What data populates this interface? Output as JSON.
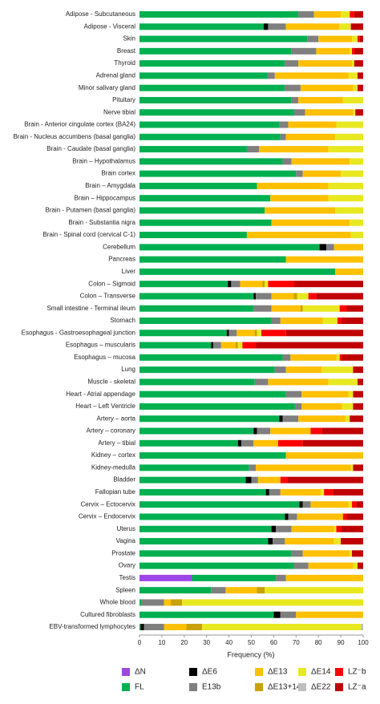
{
  "chart_data": {
    "type": "stacked-bar-horizontal",
    "xlabel": "Frequency (%)",
    "xlim": [
      0,
      100
    ],
    "xticks": [
      0,
      10,
      20,
      30,
      40,
      50,
      60,
      70,
      80,
      90,
      100
    ],
    "categories": [
      "Adipose - Subcutaneous",
      "Adipose - Visceral",
      "Skin",
      "Breast",
      "Thyroid",
      "Adrenal gland",
      "Minor salivary gland",
      "Pituitary",
      "Nerve tibial",
      "Brain - Anterior cingulate cortex (BA24)",
      "Brain - Nucleus accumbens (basal ganglia)",
      "Brain - Caudate (basal ganglia)",
      "Brain – Hypothalamus",
      "Brain cortex",
      "Brain – Amygdala",
      "Brain – Hippocampus",
      "Brain - Putamen (basal ganglia)",
      "Brain - Substantia nigra",
      "Brain - Spinal cord (cervical C-1)",
      "Cerebellum",
      "Pancreas",
      "Liver",
      "Colon – Sigmoid",
      "Colon – Transverse",
      "Small intestine - Terminal ileum",
      "Stomach",
      "Esophagus - Gastroesophageal junction",
      "Esophagus – muscularis",
      "Esophagus – mucosa",
      "Lung",
      "Muscle - skeletal",
      "Heart - Atrial appendage",
      "Heart – Left Ventricle",
      "Artery – aorta",
      "Artery – coronary",
      "Artery – tibial",
      "Kidney – cortex",
      "Kidney-medulla",
      "Bladder",
      "Fallopian tube",
      "Cervix – Ectocervix",
      "Cervix – Endocervix",
      "Uterus",
      "Vagina",
      "Prostate",
      "Ovary",
      "Testis",
      "Spleen",
      "Whole blood",
      "Cultured fibroblasts",
      "EBV-transformed lymphocytes"
    ],
    "series": [
      {
        "name": "ΔN",
        "color": "#9e47e8",
        "values": [
          0,
          0,
          0,
          0,
          0,
          0,
          0,
          0,
          0,
          0,
          0,
          0,
          0,
          0,
          0,
          0,
          0,
          0,
          0,
          0,
          0,
          0,
          0,
          0,
          0,
          0,
          0,
          0,
          0,
          0,
          0,
          0,
          0,
          0,
          0,
          0,
          0,
          0,
          0,
          0,
          0,
          0,
          0,
          0,
          0,
          0,
          23.5,
          0,
          0,
          0,
          0
        ]
      },
      {
        "name": "FL",
        "color": "#00b050",
        "values": [
          71,
          55.5,
          75,
          68,
          65,
          57,
          65,
          68,
          69,
          62.5,
          63,
          48,
          64,
          70,
          52.5,
          58.5,
          56,
          59,
          48,
          80.5,
          65.5,
          87.5,
          39.5,
          51,
          51,
          59,
          39,
          32,
          64,
          60.5,
          51.5,
          65.5,
          69.5,
          62.5,
          51,
          44,
          65.5,
          49,
          47.5,
          56.5,
          71.5,
          65,
          59,
          57.5,
          68,
          69,
          37.5,
          32,
          1,
          60,
          0.5
        ]
      },
      {
        "name": "ΔE6",
        "color": "#000000",
        "values": [
          0,
          2,
          0,
          0,
          0,
          0,
          0,
          0,
          0,
          0,
          0,
          0,
          0,
          0,
          0,
          0,
          0,
          0,
          0,
          3,
          0,
          0,
          1.5,
          1,
          0,
          0,
          1,
          1,
          0,
          0,
          0,
          0,
          0,
          1.5,
          1.5,
          1.5,
          0,
          0,
          2.5,
          1.5,
          1.5,
          1.5,
          2,
          2,
          0,
          0,
          0,
          0,
          0,
          3,
          1.5
        ]
      },
      {
        "name": "E13b",
        "color": "#7f7f7f",
        "values": [
          7,
          8,
          5,
          11,
          6,
          3.5,
          7,
          3,
          5,
          4,
          2.5,
          5.5,
          4,
          3,
          0,
          0,
          0,
          0,
          0,
          3.5,
          0,
          0,
          4,
          7,
          8,
          4,
          3.5,
          3.5,
          3.5,
          5,
          6,
          7,
          3,
          7,
          6,
          5.5,
          0,
          3,
          3,
          5,
          3.5,
          4,
          7,
          5.5,
          5,
          6.5,
          4.5,
          6.5,
          10,
          7,
          9
        ]
      },
      {
        "name": "ΔE13",
        "color": "#ffc000",
        "values": [
          12,
          24,
          15,
          15,
          24,
          33,
          23.5,
          20,
          21.5,
          21.5,
          22,
          31,
          26,
          17,
          32,
          26,
          31.5,
          35,
          46.5,
          13,
          34.5,
          12.5,
          10,
          10,
          13,
          19,
          8,
          6.5,
          20.5,
          16,
          27,
          21,
          18,
          21,
          18,
          11,
          34.5,
          42.5,
          10,
          18,
          17,
          20.5,
          19,
          22,
          21,
          20,
          34.5,
          14,
          3,
          30,
          10
        ]
      },
      {
        "name": "ΔE13+14",
        "color": "#c9a100",
        "values": [
          0,
          0,
          0,
          0,
          0,
          0,
          0,
          0,
          0,
          0,
          0,
          0,
          0,
          0,
          0,
          0,
          0,
          0,
          0,
          0,
          0,
          0,
          1,
          1.5,
          1,
          0,
          1,
          1,
          0,
          0,
          0,
          0,
          0,
          0,
          0,
          0,
          0,
          0,
          0,
          0,
          0,
          0,
          0,
          0,
          0,
          0,
          0,
          3.5,
          5,
          0,
          7
        ]
      },
      {
        "name": "ΔE14",
        "color": "#e8e820",
        "values": [
          4,
          5,
          2.5,
          1,
          1,
          4,
          2,
          9,
          1,
          12,
          12.5,
          15.5,
          6,
          10,
          15.5,
          15.5,
          12.5,
          6,
          5.5,
          0,
          0,
          0,
          1.5,
          5,
          16.5,
          6.5,
          2,
          2,
          1.5,
          14,
          13,
          2,
          5,
          2,
          0,
          0,
          0,
          1,
          0,
          1.5,
          1.5,
          0,
          1,
          3,
          1,
          2,
          0,
          44,
          81,
          0,
          71
        ]
      },
      {
        "name": "ΔE22",
        "color": "#bfbfbf",
        "values": [
          0,
          0,
          0,
          0,
          0,
          0,
          0,
          0,
          0,
          0,
          0,
          0,
          0,
          0,
          0,
          0,
          0,
          0,
          0,
          0,
          0,
          0,
          0,
          0,
          0,
          0,
          0,
          0,
          0,
          0,
          0,
          0,
          0,
          0,
          0,
          0,
          0,
          0,
          0,
          0,
          0,
          0,
          0,
          0,
          0,
          0,
          0,
          0,
          0,
          0,
          1
        ]
      },
      {
        "name": "LZ⁻b",
        "color": "#ff0000",
        "values": [
          2,
          0,
          1,
          1,
          0,
          0,
          0,
          0,
          0,
          0,
          0,
          0,
          0,
          0,
          0,
          0,
          0,
          0,
          0,
          0,
          0,
          0,
          11.5,
          3.5,
          3,
          2,
          11,
          6,
          1,
          0,
          0,
          0,
          0,
          0,
          5,
          11,
          0,
          0,
          3,
          4,
          2,
          1.5,
          2,
          0,
          0,
          0,
          0,
          0,
          0,
          0,
          0
        ]
      },
      {
        "name": "LZ⁻a",
        "color": "#c00000",
        "values": [
          4,
          5.5,
          1.5,
          4,
          4,
          2.5,
          2.5,
          0,
          3.5,
          0,
          0,
          0,
          0,
          0,
          0,
          0,
          0,
          0,
          0,
          0,
          0,
          0,
          31,
          21,
          7.5,
          9.5,
          34.5,
          48,
          9.5,
          4.5,
          2.5,
          4.5,
          4.5,
          6,
          18.5,
          27,
          0,
          4.5,
          34,
          13.5,
          3,
          7.5,
          10,
          10,
          5,
          2.5,
          0,
          0,
          0,
          0,
          0
        ]
      }
    ]
  }
}
